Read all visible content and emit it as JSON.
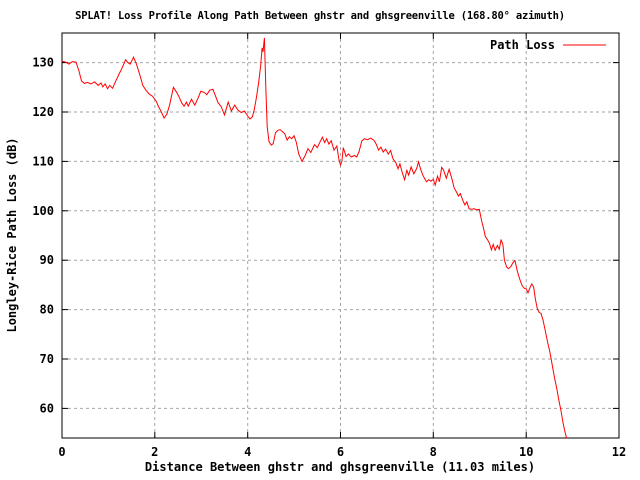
{
  "chart_data": {
    "type": "line",
    "title": "SPLAT! Loss Profile Along Path Between ghstr and ghsgreenville (168.80° azimuth)",
    "xlabel": "Distance Between ghstr and ghsgreenville (11.03 miles)",
    "ylabel": "Longley-Rice Path Loss (dB)",
    "xlim": [
      0,
      12
    ],
    "ylim": [
      54,
      136
    ],
    "xticks": [
      0,
      2,
      4,
      6,
      8,
      10,
      12
    ],
    "yticks": [
      60,
      70,
      80,
      90,
      100,
      110,
      120,
      130
    ],
    "grid": true,
    "legend": {
      "label": "Path Loss",
      "position": "top-right"
    },
    "colors": {
      "line": "#ff0000",
      "grid": "#a6a6a6",
      "text": "#000000",
      "background": "#ffffff"
    },
    "series": [
      {
        "name": "Path Loss",
        "points": [
          [
            0.0,
            130.3
          ],
          [
            0.08,
            130.1
          ],
          [
            0.15,
            129.7
          ],
          [
            0.22,
            130.2
          ],
          [
            0.3,
            130.1
          ],
          [
            0.36,
            128.5
          ],
          [
            0.42,
            126.3
          ],
          [
            0.48,
            125.8
          ],
          [
            0.55,
            126.0
          ],
          [
            0.62,
            125.7
          ],
          [
            0.7,
            126.1
          ],
          [
            0.78,
            125.4
          ],
          [
            0.84,
            125.9
          ],
          [
            0.88,
            125.1
          ],
          [
            0.93,
            125.7
          ],
          [
            0.98,
            124.7
          ],
          [
            1.03,
            125.4
          ],
          [
            1.09,
            124.8
          ],
          [
            1.16,
            126.3
          ],
          [
            1.23,
            127.7
          ],
          [
            1.3,
            129.0
          ],
          [
            1.37,
            130.6
          ],
          [
            1.42,
            130.0
          ],
          [
            1.47,
            129.7
          ],
          [
            1.54,
            131.1
          ],
          [
            1.6,
            129.8
          ],
          [
            1.68,
            127.4
          ],
          [
            1.74,
            125.4
          ],
          [
            1.81,
            124.4
          ],
          [
            1.88,
            123.6
          ],
          [
            1.95,
            123.2
          ],
          [
            2.03,
            122.2
          ],
          [
            2.08,
            121.1
          ],
          [
            2.13,
            120.2
          ],
          [
            2.2,
            118.8
          ],
          [
            2.26,
            119.6
          ],
          [
            2.32,
            121.5
          ],
          [
            2.4,
            125.0
          ],
          [
            2.47,
            124.0
          ],
          [
            2.51,
            123.3
          ],
          [
            2.58,
            121.8
          ],
          [
            2.63,
            121.2
          ],
          [
            2.68,
            122.0
          ],
          [
            2.72,
            121.2
          ],
          [
            2.79,
            122.6
          ],
          [
            2.86,
            121.4
          ],
          [
            2.93,
            122.8
          ],
          [
            2.99,
            124.2
          ],
          [
            3.06,
            124.0
          ],
          [
            3.12,
            123.5
          ],
          [
            3.18,
            124.4
          ],
          [
            3.25,
            124.6
          ],
          [
            3.3,
            123.4
          ],
          [
            3.36,
            121.9
          ],
          [
            3.43,
            121.1
          ],
          [
            3.5,
            119.4
          ],
          [
            3.58,
            122.0
          ],
          [
            3.65,
            120.2
          ],
          [
            3.72,
            121.4
          ],
          [
            3.79,
            120.4
          ],
          [
            3.86,
            119.9
          ],
          [
            3.93,
            120.2
          ],
          [
            4.0,
            119.2
          ],
          [
            4.05,
            118.6
          ],
          [
            4.1,
            119.0
          ],
          [
            4.14,
            120.4
          ],
          [
            4.19,
            123.0
          ],
          [
            4.24,
            126.2
          ],
          [
            4.28,
            129.5
          ],
          [
            4.31,
            133.0
          ],
          [
            4.33,
            132.2
          ],
          [
            4.36,
            135.0
          ],
          [
            4.39,
            125.0
          ],
          [
            4.42,
            117.0
          ],
          [
            4.46,
            114.0
          ],
          [
            4.51,
            113.3
          ],
          [
            4.55,
            113.6
          ],
          [
            4.6,
            115.8
          ],
          [
            4.65,
            116.3
          ],
          [
            4.7,
            116.4
          ],
          [
            4.75,
            116.0
          ],
          [
            4.8,
            115.6
          ],
          [
            4.85,
            114.3
          ],
          [
            4.9,
            115.0
          ],
          [
            4.95,
            114.6
          ],
          [
            5.0,
            115.2
          ],
          [
            5.05,
            113.8
          ],
          [
            5.1,
            111.5
          ],
          [
            5.17,
            110.0
          ],
          [
            5.24,
            111.2
          ],
          [
            5.3,
            112.6
          ],
          [
            5.36,
            111.8
          ],
          [
            5.44,
            113.4
          ],
          [
            5.5,
            112.8
          ],
          [
            5.56,
            114.0
          ],
          [
            5.61,
            114.9
          ],
          [
            5.66,
            113.8
          ],
          [
            5.7,
            114.6
          ],
          [
            5.75,
            113.5
          ],
          [
            5.8,
            114.2
          ],
          [
            5.86,
            112.3
          ],
          [
            5.92,
            113.1
          ],
          [
            5.97,
            110.2
          ],
          [
            6.0,
            109.3
          ],
          [
            6.03,
            110.0
          ],
          [
            6.06,
            112.8
          ],
          [
            6.12,
            111.0
          ],
          [
            6.17,
            111.5
          ],
          [
            6.23,
            110.9
          ],
          [
            6.3,
            111.2
          ],
          [
            6.35,
            110.9
          ],
          [
            6.4,
            112.0
          ],
          [
            6.46,
            114.2
          ],
          [
            6.52,
            114.6
          ],
          [
            6.58,
            114.4
          ],
          [
            6.65,
            114.7
          ],
          [
            6.72,
            114.3
          ],
          [
            6.77,
            113.5
          ],
          [
            6.82,
            112.3
          ],
          [
            6.87,
            112.9
          ],
          [
            6.92,
            111.9
          ],
          [
            6.97,
            112.5
          ],
          [
            7.03,
            111.5
          ],
          [
            7.08,
            112.2
          ],
          [
            7.13,
            110.5
          ],
          [
            7.19,
            109.8
          ],
          [
            7.24,
            108.5
          ],
          [
            7.28,
            109.5
          ],
          [
            7.33,
            107.8
          ],
          [
            7.38,
            106.3
          ],
          [
            7.43,
            108.2
          ],
          [
            7.47,
            107.2
          ],
          [
            7.52,
            108.9
          ],
          [
            7.58,
            107.5
          ],
          [
            7.64,
            108.5
          ],
          [
            7.68,
            109.9
          ],
          [
            7.73,
            108.3
          ],
          [
            7.78,
            107.1
          ],
          [
            7.85,
            105.9
          ],
          [
            7.9,
            106.3
          ],
          [
            7.95,
            106.0
          ],
          [
            8.0,
            106.4
          ],
          [
            8.04,
            105.2
          ],
          [
            8.09,
            107.0
          ],
          [
            8.13,
            105.9
          ],
          [
            8.18,
            108.8
          ],
          [
            8.22,
            108.3
          ],
          [
            8.28,
            106.6
          ],
          [
            8.34,
            108.4
          ],
          [
            8.4,
            106.5
          ],
          [
            8.45,
            104.6
          ],
          [
            8.5,
            103.8
          ],
          [
            8.54,
            103.0
          ],
          [
            8.58,
            103.5
          ],
          [
            8.63,
            102.2
          ],
          [
            8.68,
            101.2
          ],
          [
            8.72,
            101.8
          ],
          [
            8.77,
            100.4
          ],
          [
            8.82,
            100.3
          ],
          [
            8.88,
            100.4
          ],
          [
            8.93,
            100.2
          ],
          [
            8.99,
            100.3
          ],
          [
            9.04,
            98.0
          ],
          [
            9.08,
            96.5
          ],
          [
            9.12,
            94.8
          ],
          [
            9.17,
            94.1
          ],
          [
            9.21,
            93.4
          ],
          [
            9.25,
            92.1
          ],
          [
            9.29,
            93.2
          ],
          [
            9.33,
            92.0
          ],
          [
            9.38,
            93.0
          ],
          [
            9.42,
            92.2
          ],
          [
            9.46,
            94.2
          ],
          [
            9.5,
            93.0
          ],
          [
            9.53,
            90.0
          ],
          [
            9.58,
            88.6
          ],
          [
            9.62,
            88.3
          ],
          [
            9.67,
            88.7
          ],
          [
            9.72,
            89.6
          ],
          [
            9.76,
            89.9
          ],
          [
            9.81,
            87.8
          ],
          [
            9.86,
            86.2
          ],
          [
            9.91,
            84.9
          ],
          [
            9.96,
            84.3
          ],
          [
            10.0,
            84.2
          ],
          [
            10.04,
            83.4
          ],
          [
            10.08,
            84.4
          ],
          [
            10.12,
            85.2
          ],
          [
            10.16,
            84.6
          ],
          [
            10.2,
            82.0
          ],
          [
            10.24,
            80.2
          ],
          [
            10.28,
            79.4
          ],
          [
            10.32,
            79.2
          ],
          [
            10.36,
            78.0
          ],
          [
            10.41,
            75.8
          ],
          [
            10.46,
            73.5
          ],
          [
            10.51,
            71.5
          ],
          [
            10.56,
            68.8
          ],
          [
            10.61,
            66.2
          ],
          [
            10.66,
            64.0
          ],
          [
            10.7,
            61.8
          ],
          [
            10.75,
            59.5
          ],
          [
            10.79,
            57.3
          ],
          [
            10.83,
            55.5
          ],
          [
            10.87,
            54.0
          ]
        ]
      }
    ]
  }
}
